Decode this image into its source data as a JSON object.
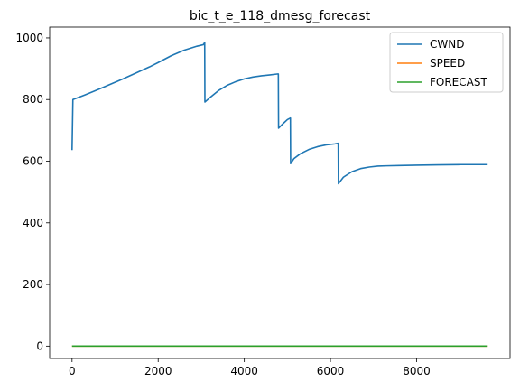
{
  "chart_data": {
    "type": "line",
    "title": "bic_t_e_118_dmesg_forecast",
    "xlabel": "",
    "ylabel": "",
    "xlim": [
      -520,
      10170
    ],
    "ylim": [
      -40,
      1035
    ],
    "xticks": [
      0,
      2000,
      4000,
      6000,
      8000
    ],
    "yticks": [
      0,
      200,
      400,
      600,
      800,
      1000
    ],
    "grid": false,
    "legend_position": "top-right",
    "series": [
      {
        "name": "CWND",
        "color": "#1f77b4",
        "points": [
          [
            0,
            636
          ],
          [
            20,
            800
          ],
          [
            300,
            815
          ],
          [
            600,
            832
          ],
          [
            900,
            850
          ],
          [
            1200,
            868
          ],
          [
            1500,
            887
          ],
          [
            1800,
            906
          ],
          [
            2000,
            920
          ],
          [
            2300,
            942
          ],
          [
            2600,
            960
          ],
          [
            2900,
            973
          ],
          [
            3050,
            978
          ],
          [
            3080,
            985
          ],
          [
            3085,
            792
          ],
          [
            3200,
            806
          ],
          [
            3400,
            829
          ],
          [
            3600,
            846
          ],
          [
            3800,
            858
          ],
          [
            4000,
            867
          ],
          [
            4200,
            873
          ],
          [
            4400,
            877
          ],
          [
            4600,
            880
          ],
          [
            4780,
            883
          ],
          [
            4790,
            883
          ],
          [
            4795,
            707
          ],
          [
            4900,
            722
          ],
          [
            5000,
            735
          ],
          [
            5070,
            740
          ],
          [
            5075,
            592
          ],
          [
            5150,
            608
          ],
          [
            5300,
            624
          ],
          [
            5500,
            638
          ],
          [
            5700,
            647
          ],
          [
            5900,
            653
          ],
          [
            6100,
            656
          ],
          [
            6180,
            658
          ],
          [
            6185,
            527
          ],
          [
            6300,
            548
          ],
          [
            6500,
            566
          ],
          [
            6700,
            576
          ],
          [
            6900,
            581
          ],
          [
            7100,
            584
          ],
          [
            7300,
            585
          ],
          [
            7600,
            586
          ],
          [
            8000,
            587
          ],
          [
            8500,
            588
          ],
          [
            9000,
            589
          ],
          [
            9400,
            589
          ],
          [
            9650,
            589
          ]
        ]
      },
      {
        "name": "SPEED",
        "color": "#ff7f0e",
        "points": [
          [
            0,
            0
          ],
          [
            9650,
            0
          ]
        ]
      },
      {
        "name": "FORECAST",
        "color": "#2ca02c",
        "points": [
          [
            0,
            0
          ],
          [
            9650,
            0
          ]
        ]
      }
    ]
  }
}
